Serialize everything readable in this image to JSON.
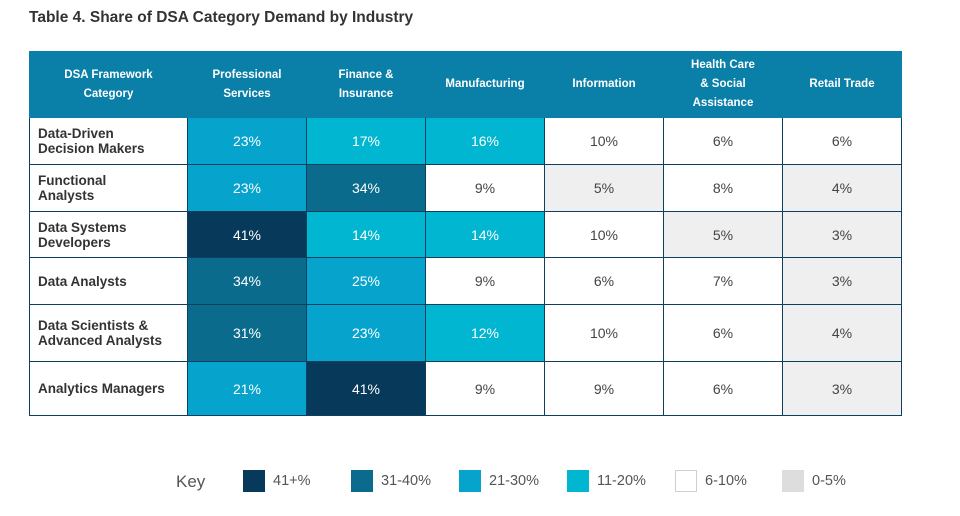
{
  "title": "Table 4. Share of DSA Category Demand by Industry",
  "chart_data": {
    "type": "table",
    "title": "Table 4. Share of DSA Category Demand by Industry",
    "row_header": "DSA Framework Category",
    "columns": [
      "Professional Services",
      "Finance & Insurance",
      "Manufacturing",
      "Information",
      "Health Care & Social Assistance",
      "Retail Trade"
    ],
    "header_lines": [
      [
        "DSA Framework",
        "Category"
      ],
      [
        "Professional",
        "Services"
      ],
      [
        "Finance &",
        "Insurance"
      ],
      [
        "Manufacturing"
      ],
      [
        "Information"
      ],
      [
        "Health Care",
        "& Social",
        "Assistance"
      ],
      [
        "Retail Trade"
      ]
    ],
    "rows": [
      {
        "label_lines": [
          "Data-Driven",
          "Decision Makers"
        ],
        "values": [
          23,
          17,
          16,
          10,
          6,
          6
        ]
      },
      {
        "label_lines": [
          "Functional",
          "Analysts"
        ],
        "values": [
          23,
          34,
          9,
          5,
          8,
          4
        ]
      },
      {
        "label_lines": [
          "Data Systems",
          "Developers"
        ],
        "values": [
          41,
          14,
          14,
          10,
          5,
          3
        ]
      },
      {
        "label_lines": [
          "Data Analysts"
        ],
        "values": [
          34,
          25,
          9,
          6,
          7,
          3
        ]
      },
      {
        "label_lines": [
          "Data Scientists &",
          "Advanced Analysts"
        ],
        "values": [
          31,
          23,
          12,
          10,
          6,
          4
        ]
      },
      {
        "label_lines": [
          "Analytics Managers"
        ],
        "values": [
          21,
          41,
          9,
          9,
          6,
          3
        ]
      }
    ],
    "unit": "%"
  },
  "key": {
    "title": "Key",
    "items": [
      {
        "label": "41+%",
        "class": "c41",
        "color": "#073a5a"
      },
      {
        "label": "31-40%",
        "class": "c31",
        "color": "#0a6b8c"
      },
      {
        "label": "21-30%",
        "class": "c21",
        "color": "#06a4cd"
      },
      {
        "label": "11-20%",
        "class": "c11",
        "color": "#00b6d0"
      },
      {
        "label": "6-10%",
        "class": "c6",
        "color": "#ffffff"
      },
      {
        "label": "0-5%",
        "class": "c0",
        "color": "#dddddd"
      }
    ]
  }
}
